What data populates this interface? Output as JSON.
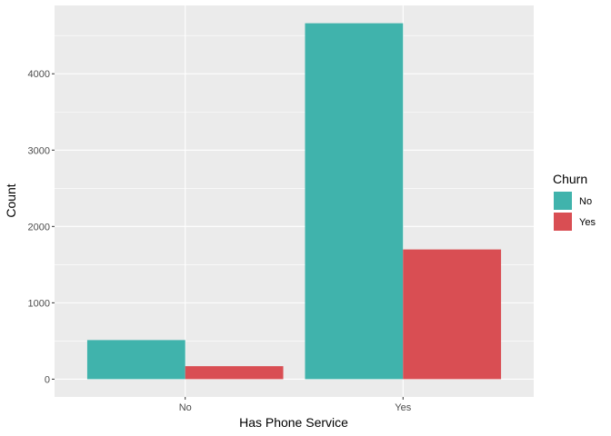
{
  "chart_data": {
    "type": "bar",
    "title": "",
    "xlabel": "Has Phone Service",
    "ylabel": "Count",
    "categories": [
      "No",
      "Yes"
    ],
    "series": [
      {
        "name": "No",
        "values": [
          512,
          4662
        ],
        "color": "#40B3AC"
      },
      {
        "name": "Yes",
        "values": [
          170,
          1699
        ],
        "color": "#D94E53"
      }
    ],
    "yticks": [
      0,
      1000,
      2000,
      3000,
      4000
    ],
    "ylim": [
      -233,
      4895
    ],
    "grid": true,
    "legend": {
      "title": "Churn",
      "placement": "right",
      "entries": [
        "No",
        "Yes"
      ]
    }
  }
}
